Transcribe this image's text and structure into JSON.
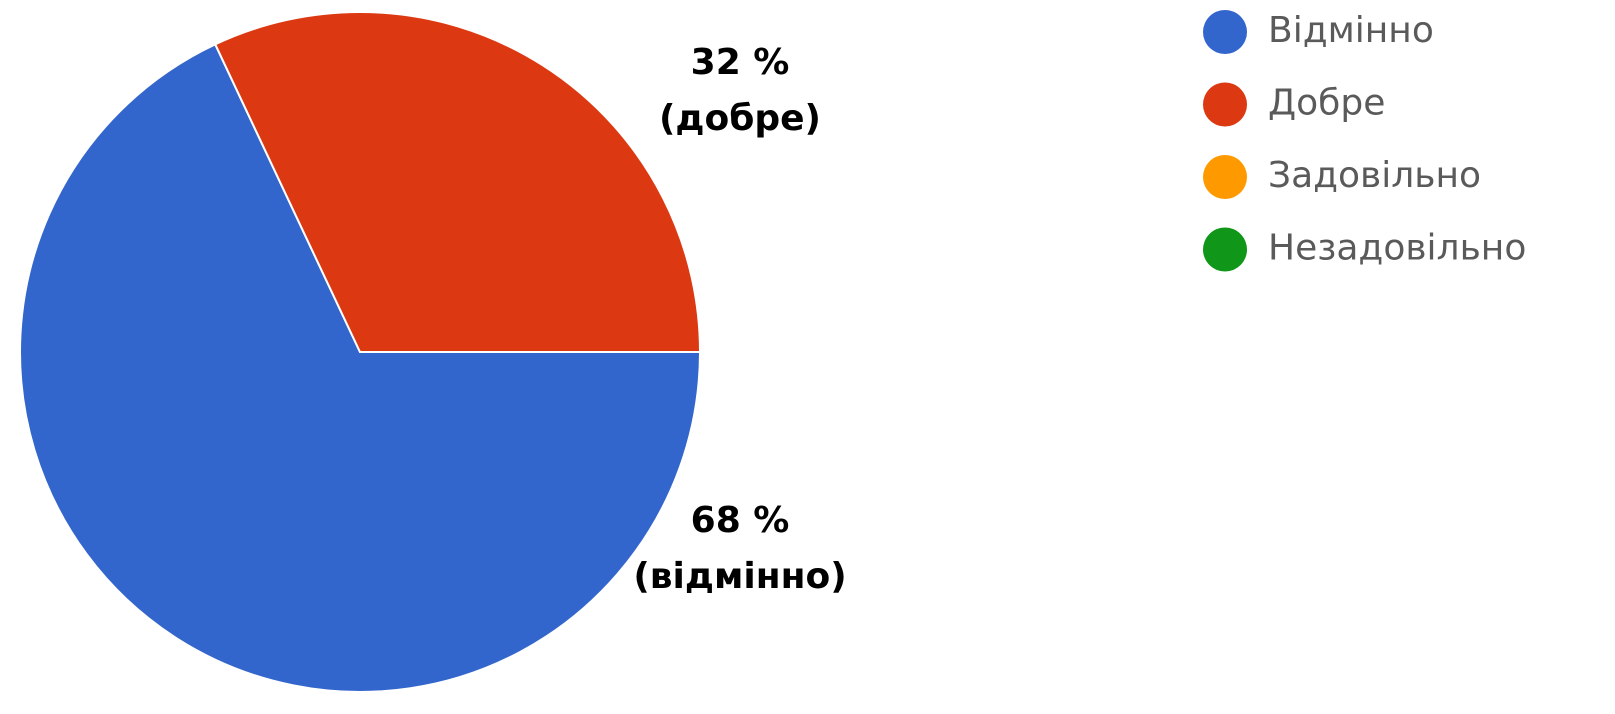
{
  "chart_data": {
    "type": "pie",
    "categories": [
      "Відмінно",
      "Добре",
      "Задовільно",
      "Незадовільно"
    ],
    "values": [
      68,
      32,
      0,
      0
    ],
    "value_labels": [
      "68 %",
      "32 %",
      null,
      null
    ],
    "annotations": [
      "(відмінно)",
      "(добре)",
      null,
      null
    ],
    "colors": [
      "#3366cc",
      "#dc3912",
      "#ff9900",
      "#109618"
    ],
    "legend": "right"
  }
}
